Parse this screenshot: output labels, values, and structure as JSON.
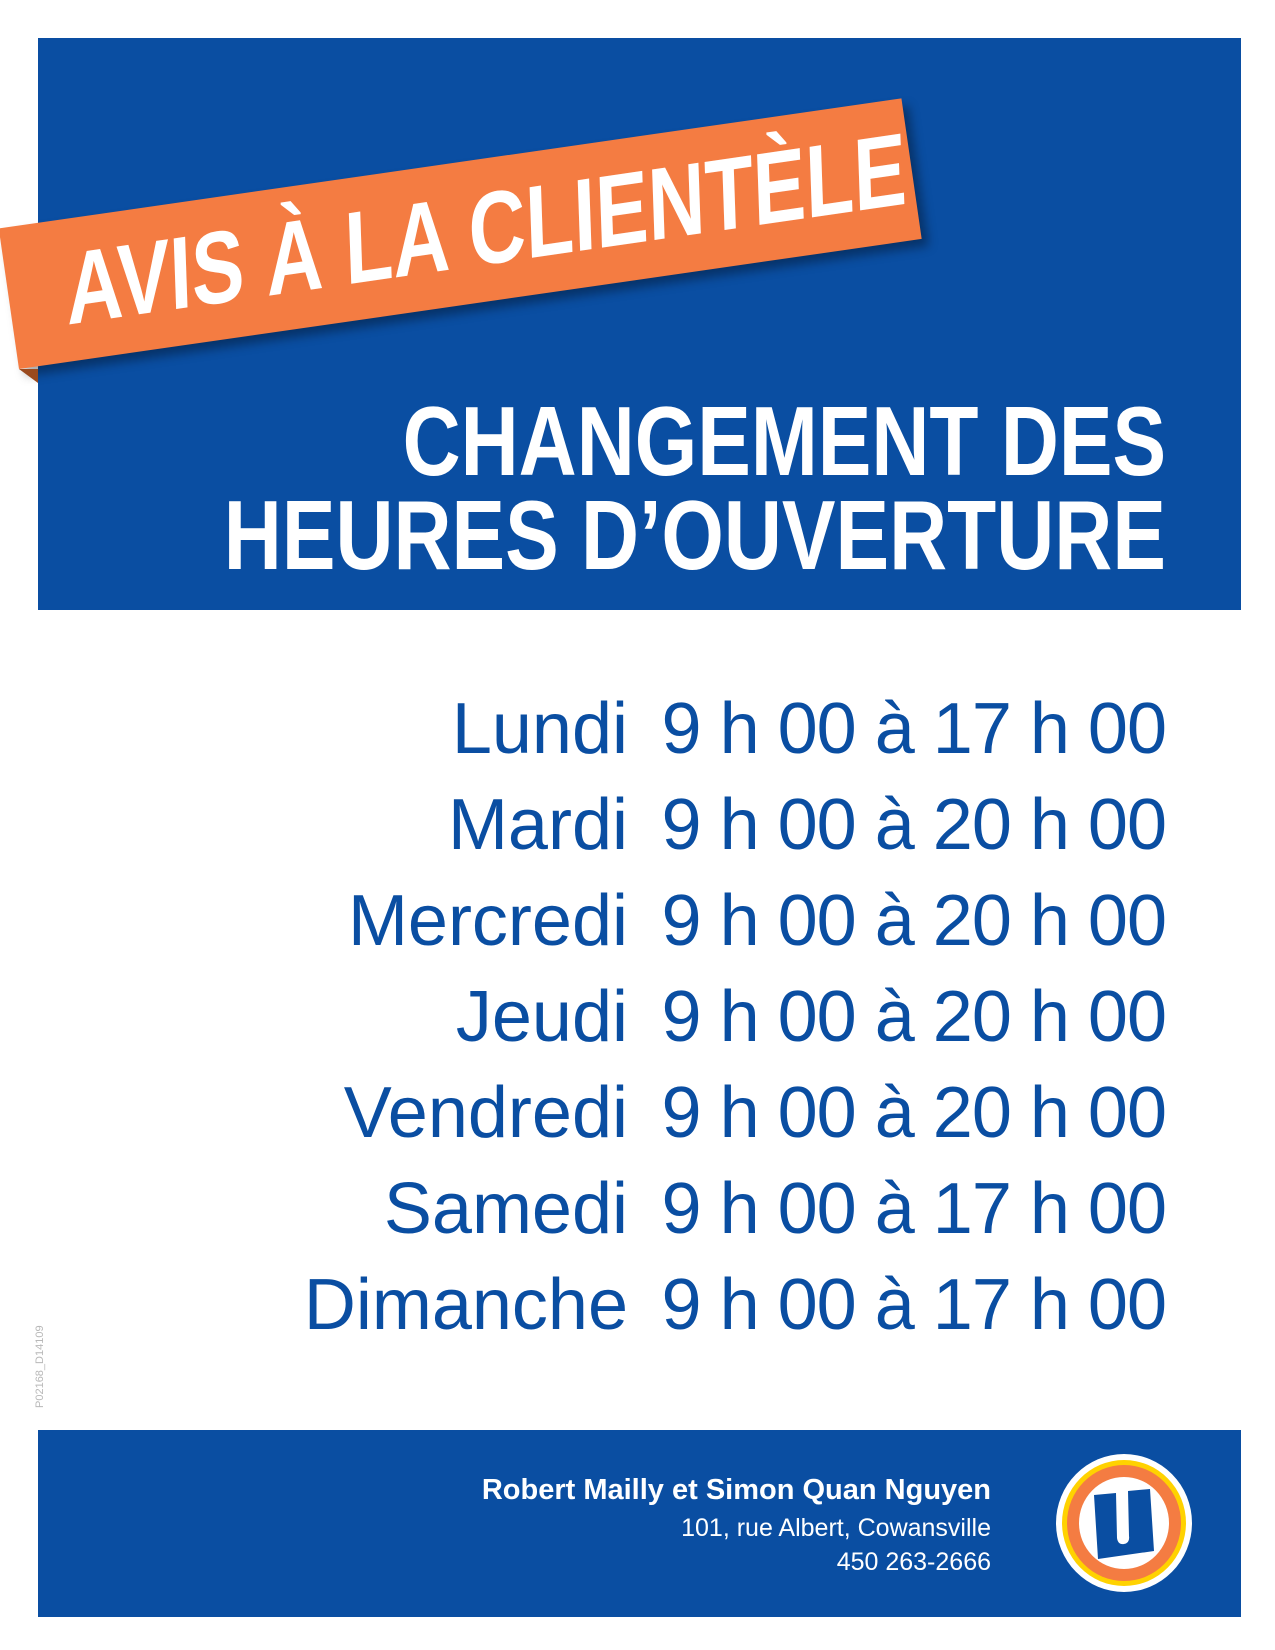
{
  "banner": {
    "ribbon": "AVIS À LA CLIENTÈLE",
    "title_line1": "CHANGEMENT DES",
    "title_line2": "HEURES D’OUVERTURE"
  },
  "hours": [
    {
      "day": "Lundi",
      "time": "9 h 00 à 17 h 00"
    },
    {
      "day": "Mardi",
      "time": "9 h 00 à 20 h 00"
    },
    {
      "day": "Mercredi",
      "time": "9 h 00 à 20 h 00"
    },
    {
      "day": "Jeudi",
      "time": "9 h 00 à 20 h 00"
    },
    {
      "day": "Vendredi",
      "time": "9 h 00 à 20 h 00"
    },
    {
      "day": "Samedi",
      "time": "9 h 00 à 17 h 00"
    },
    {
      "day": "Dimanche",
      "time": "9 h 00 à 17 h 00"
    }
  ],
  "doc_code": "P02168_D14109",
  "footer": {
    "owners": "Robert Mailly et Simon Quan Nguyen",
    "address": "101, rue Albert, Cowansville",
    "phone": "450 263-2666",
    "logo": "U"
  },
  "colors": {
    "brand_blue": "#0a4ea2",
    "ribbon_orange": "#f47c42",
    "logo_yellow": "#ffd200"
  }
}
